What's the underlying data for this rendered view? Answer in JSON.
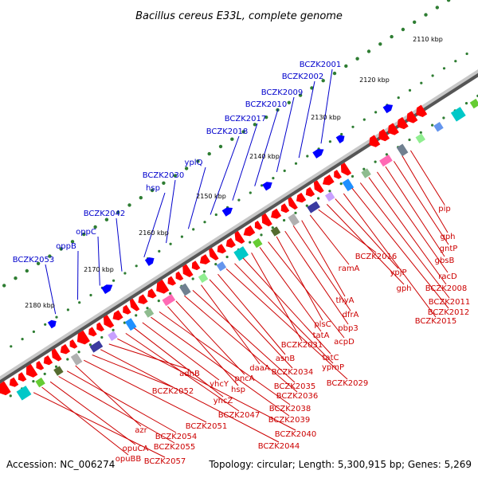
{
  "title": "Bacillus cereus E33L, complete genome",
  "footer": {
    "accession": "Accession: NC_006274",
    "topology": "Topology: circular; Length: 5,300,915 bp; Genes: 5,269"
  },
  "colors": {
    "forward_label": "#0000cc",
    "reverse_label": "#cc0000",
    "forward_gene": "#0000ff",
    "reverse_gene": "#ff0000",
    "backbone": "#888888",
    "tick": "#2e7d32"
  },
  "kbp_ticks": [
    "2110 kbp",
    "2120 kbp",
    "2130 kbp",
    "2140 kbp",
    "2150 kbp",
    "2160 kbp",
    "2170 kbp",
    "2180 kbp"
  ],
  "forward_labels": [
    "BCZK2001",
    "BCZK2002",
    "BCZK2009",
    "BCZK2010",
    "BCZK2017",
    "BCZK2018",
    "yplQ",
    "BCZK2030",
    "hsp",
    "BCZK2042",
    "oppC",
    "oppB",
    "BCZK2053"
  ],
  "reverse_labels": [
    "pip",
    "gph",
    "gntP",
    "gbsB",
    "racD",
    "BCZK2008",
    "BCZK2011",
    "BCZK2012",
    "BCZK2015",
    "ypjP",
    "gph",
    "BCZK2016",
    "ramA",
    "thyA",
    "dfrA",
    "pbp3",
    "plsC",
    "acpD",
    "tatA",
    "BCZK2031",
    "tatC",
    "ypmP",
    "BCZK2029",
    "asnB",
    "BCZK2034",
    "daaA",
    "BCZK2035",
    "BCZK2036",
    "pncA",
    "hsp",
    "BCZK2038",
    "BCZK2039",
    "yhcY",
    "yhcZ",
    "BCZK2047",
    "BCZK2040",
    "adhB",
    "BCZK2044",
    "BCZK2052",
    "BCZK2051",
    "azr",
    "BCZK2054",
    "BCZK2055",
    "opuCA",
    "opuBB",
    "BCZK2057"
  ]
}
